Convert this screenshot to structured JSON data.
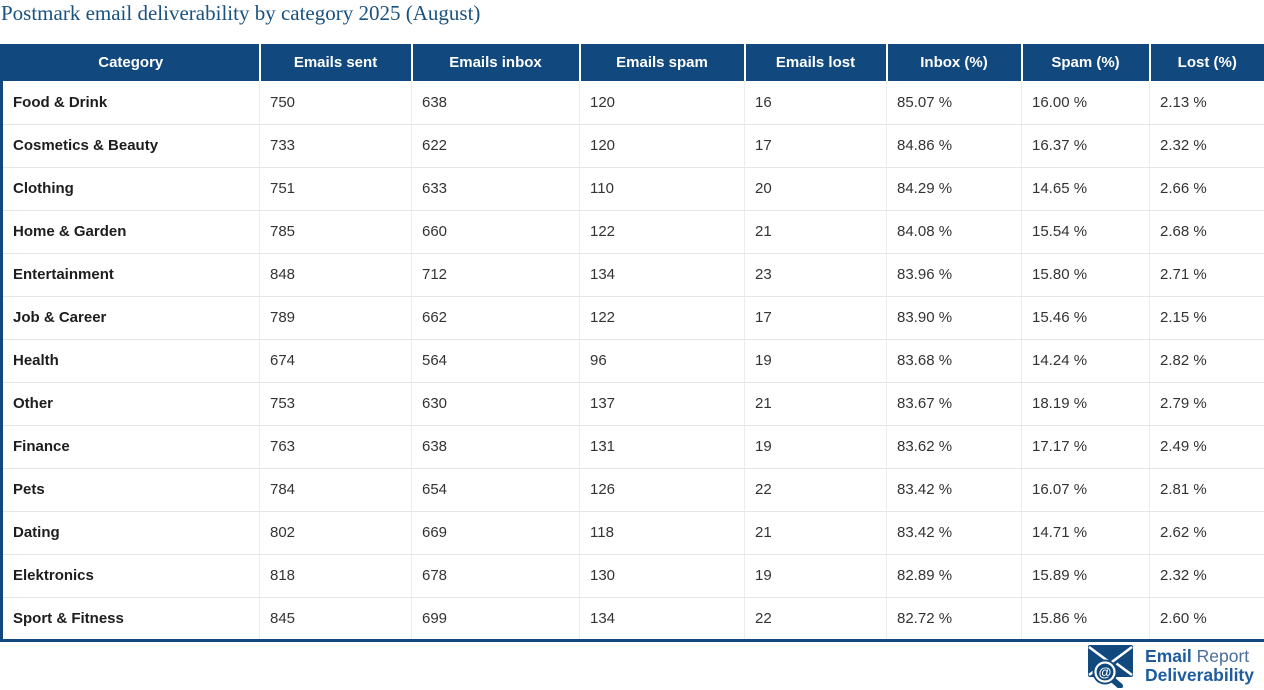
{
  "chart_data": {
    "type": "table",
    "title": "Postmark email deliverability by category 2025 (August)",
    "columns": [
      "Category",
      "Emails sent",
      "Emails inbox",
      "Emails spam",
      "Emails lost",
      "Inbox (%)",
      "Spam (%)",
      "Lost (%)"
    ],
    "rows": [
      [
        "Food & Drink",
        "750",
        "638",
        "120",
        "16",
        "85.07 %",
        "16.00 %",
        "2.13 %"
      ],
      [
        "Cosmetics & Beauty",
        "733",
        "622",
        "120",
        "17",
        "84.86 %",
        "16.37 %",
        "2.32 %"
      ],
      [
        "Clothing",
        "751",
        "633",
        "110",
        "20",
        "84.29 %",
        "14.65 %",
        "2.66 %"
      ],
      [
        "Home & Garden",
        "785",
        "660",
        "122",
        "21",
        "84.08 %",
        "15.54 %",
        "2.68 %"
      ],
      [
        "Entertainment",
        "848",
        "712",
        "134",
        "23",
        "83.96 %",
        "15.80 %",
        "2.71 %"
      ],
      [
        "Job & Career",
        "789",
        "662",
        "122",
        "17",
        "83.90 %",
        "15.46 %",
        "2.15 %"
      ],
      [
        "Health",
        "674",
        "564",
        "96",
        "19",
        "83.68 %",
        "14.24 %",
        "2.82 %"
      ],
      [
        "Other",
        "753",
        "630",
        "137",
        "21",
        "83.67 %",
        "18.19 %",
        "2.79 %"
      ],
      [
        "Finance",
        "763",
        "638",
        "131",
        "19",
        "83.62 %",
        "17.17 %",
        "2.49 %"
      ],
      [
        "Pets",
        "784",
        "654",
        "126",
        "22",
        "83.42 %",
        "16.07 %",
        "2.81 %"
      ],
      [
        "Dating",
        "802",
        "669",
        "118",
        "21",
        "83.42 %",
        "14.71 %",
        "2.62 %"
      ],
      [
        "Elektronics",
        "818",
        "678",
        "130",
        "19",
        "82.89 %",
        "15.89 %",
        "2.32 %"
      ],
      [
        "Sport & Fitness",
        "845",
        "699",
        "134",
        "22",
        "82.72 %",
        "15.86 %",
        "2.60 %"
      ]
    ]
  },
  "logo": {
    "name_bold": "Email",
    "name_regular": "Report",
    "name_line2": "Deliverability",
    "at_symbol": "@"
  },
  "colors": {
    "header_bg": "#11497e",
    "title_text": "#19517f",
    "logo_blue": "#1e5c9e"
  }
}
